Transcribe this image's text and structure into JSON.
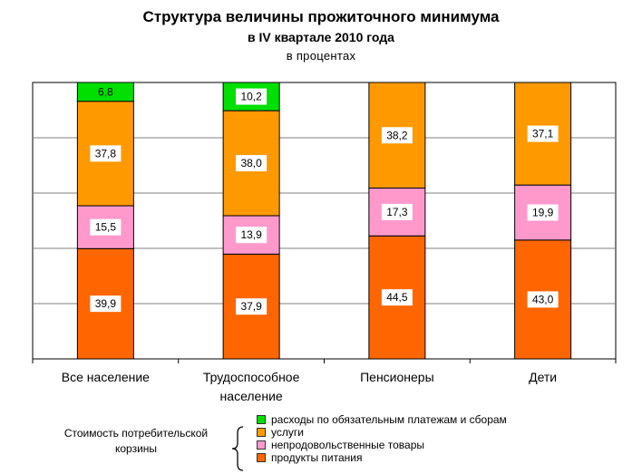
{
  "header": {
    "title": "Структура величины прожиточного минимума",
    "subtitle": "в IV квартале 2010 года",
    "unit": "в процентах"
  },
  "legend": {
    "caption": "Стоимость потребительской корзины",
    "items": [
      {
        "label": "расходы по обязательным платежам и сборам",
        "color": "#00e000"
      },
      {
        "label": "услуги",
        "color": "#ff9900"
      },
      {
        "label": "непродовольственные товары",
        "color": "#ff99cc"
      },
      {
        "label": "продукты питания",
        "color": "#ff6600"
      }
    ]
  },
  "chart_data": {
    "type": "bar",
    "stacked": true,
    "categories": [
      "Все население",
      "Трудоспособное население",
      "Пенсионеры",
      "Дети"
    ],
    "category_labels": [
      [
        "Все население"
      ],
      [
        "Трудоспособное",
        "население"
      ],
      [
        "Пенсионеры"
      ],
      [
        "Дети"
      ]
    ],
    "series": [
      {
        "name": "продукты питания",
        "color": "#ff6600",
        "values": [
          39.9,
          37.9,
          44.5,
          43.0
        ],
        "labels": [
          "39,9",
          "37,9",
          "44,5",
          "43,0"
        ]
      },
      {
        "name": "непродовольственные товары",
        "color": "#ff99cc",
        "values": [
          15.5,
          13.9,
          17.3,
          19.9
        ],
        "labels": [
          "15,5",
          "13,9",
          "17,3",
          "19,9"
        ]
      },
      {
        "name": "услуги",
        "color": "#ff9900",
        "values": [
          37.8,
          38.0,
          38.2,
          37.1
        ],
        "labels": [
          "37,8",
          "38,0",
          "38,2",
          "37,1"
        ]
      },
      {
        "name": "расходы по обязательным платежам и сборам",
        "color": "#00e000",
        "values": [
          6.8,
          10.2,
          0,
          0
        ],
        "labels": [
          "6,8",
          "10,2",
          "",
          ""
        ]
      }
    ],
    "ylim": [
      0,
      100
    ],
    "grid": true,
    "legend_position": "bottom"
  }
}
